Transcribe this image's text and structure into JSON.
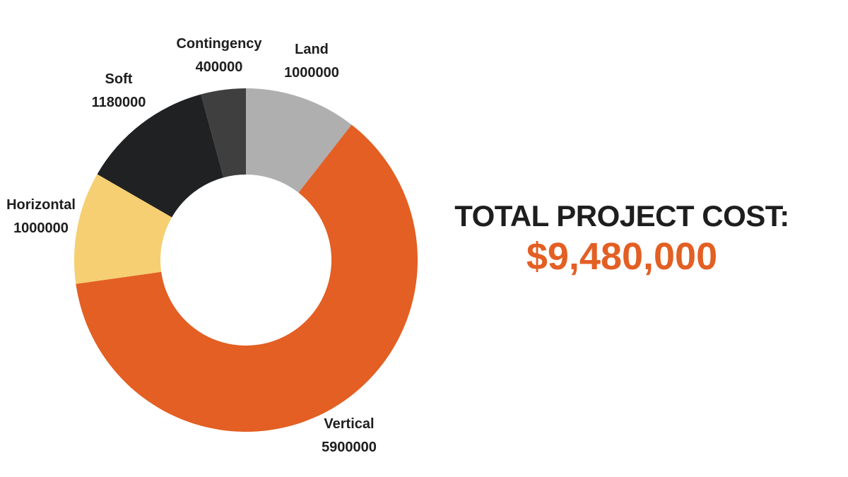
{
  "chart_data": {
    "type": "pie",
    "donut": true,
    "start_angle_deg": 0,
    "direction": "clockwise",
    "slices": [
      {
        "label": "Land",
        "value": 1000000,
        "color": "#afafaf"
      },
      {
        "label": "Vertical",
        "value": 5900000,
        "color": "#e35f23"
      },
      {
        "label": "Horizontal",
        "value": 1000000,
        "color": "#f6cf72"
      },
      {
        "label": "Soft",
        "value": 1180000,
        "color": "#202122"
      },
      {
        "label": "Contingency",
        "value": 400000,
        "color": "#3f3f3f"
      }
    ],
    "data_labels": "outside"
  },
  "summary": {
    "title": "TOTAL PROJECT COST:",
    "amount": "$9,480,000"
  },
  "colors": {
    "accent": "#e35f23",
    "text": "#1e1e1e"
  }
}
